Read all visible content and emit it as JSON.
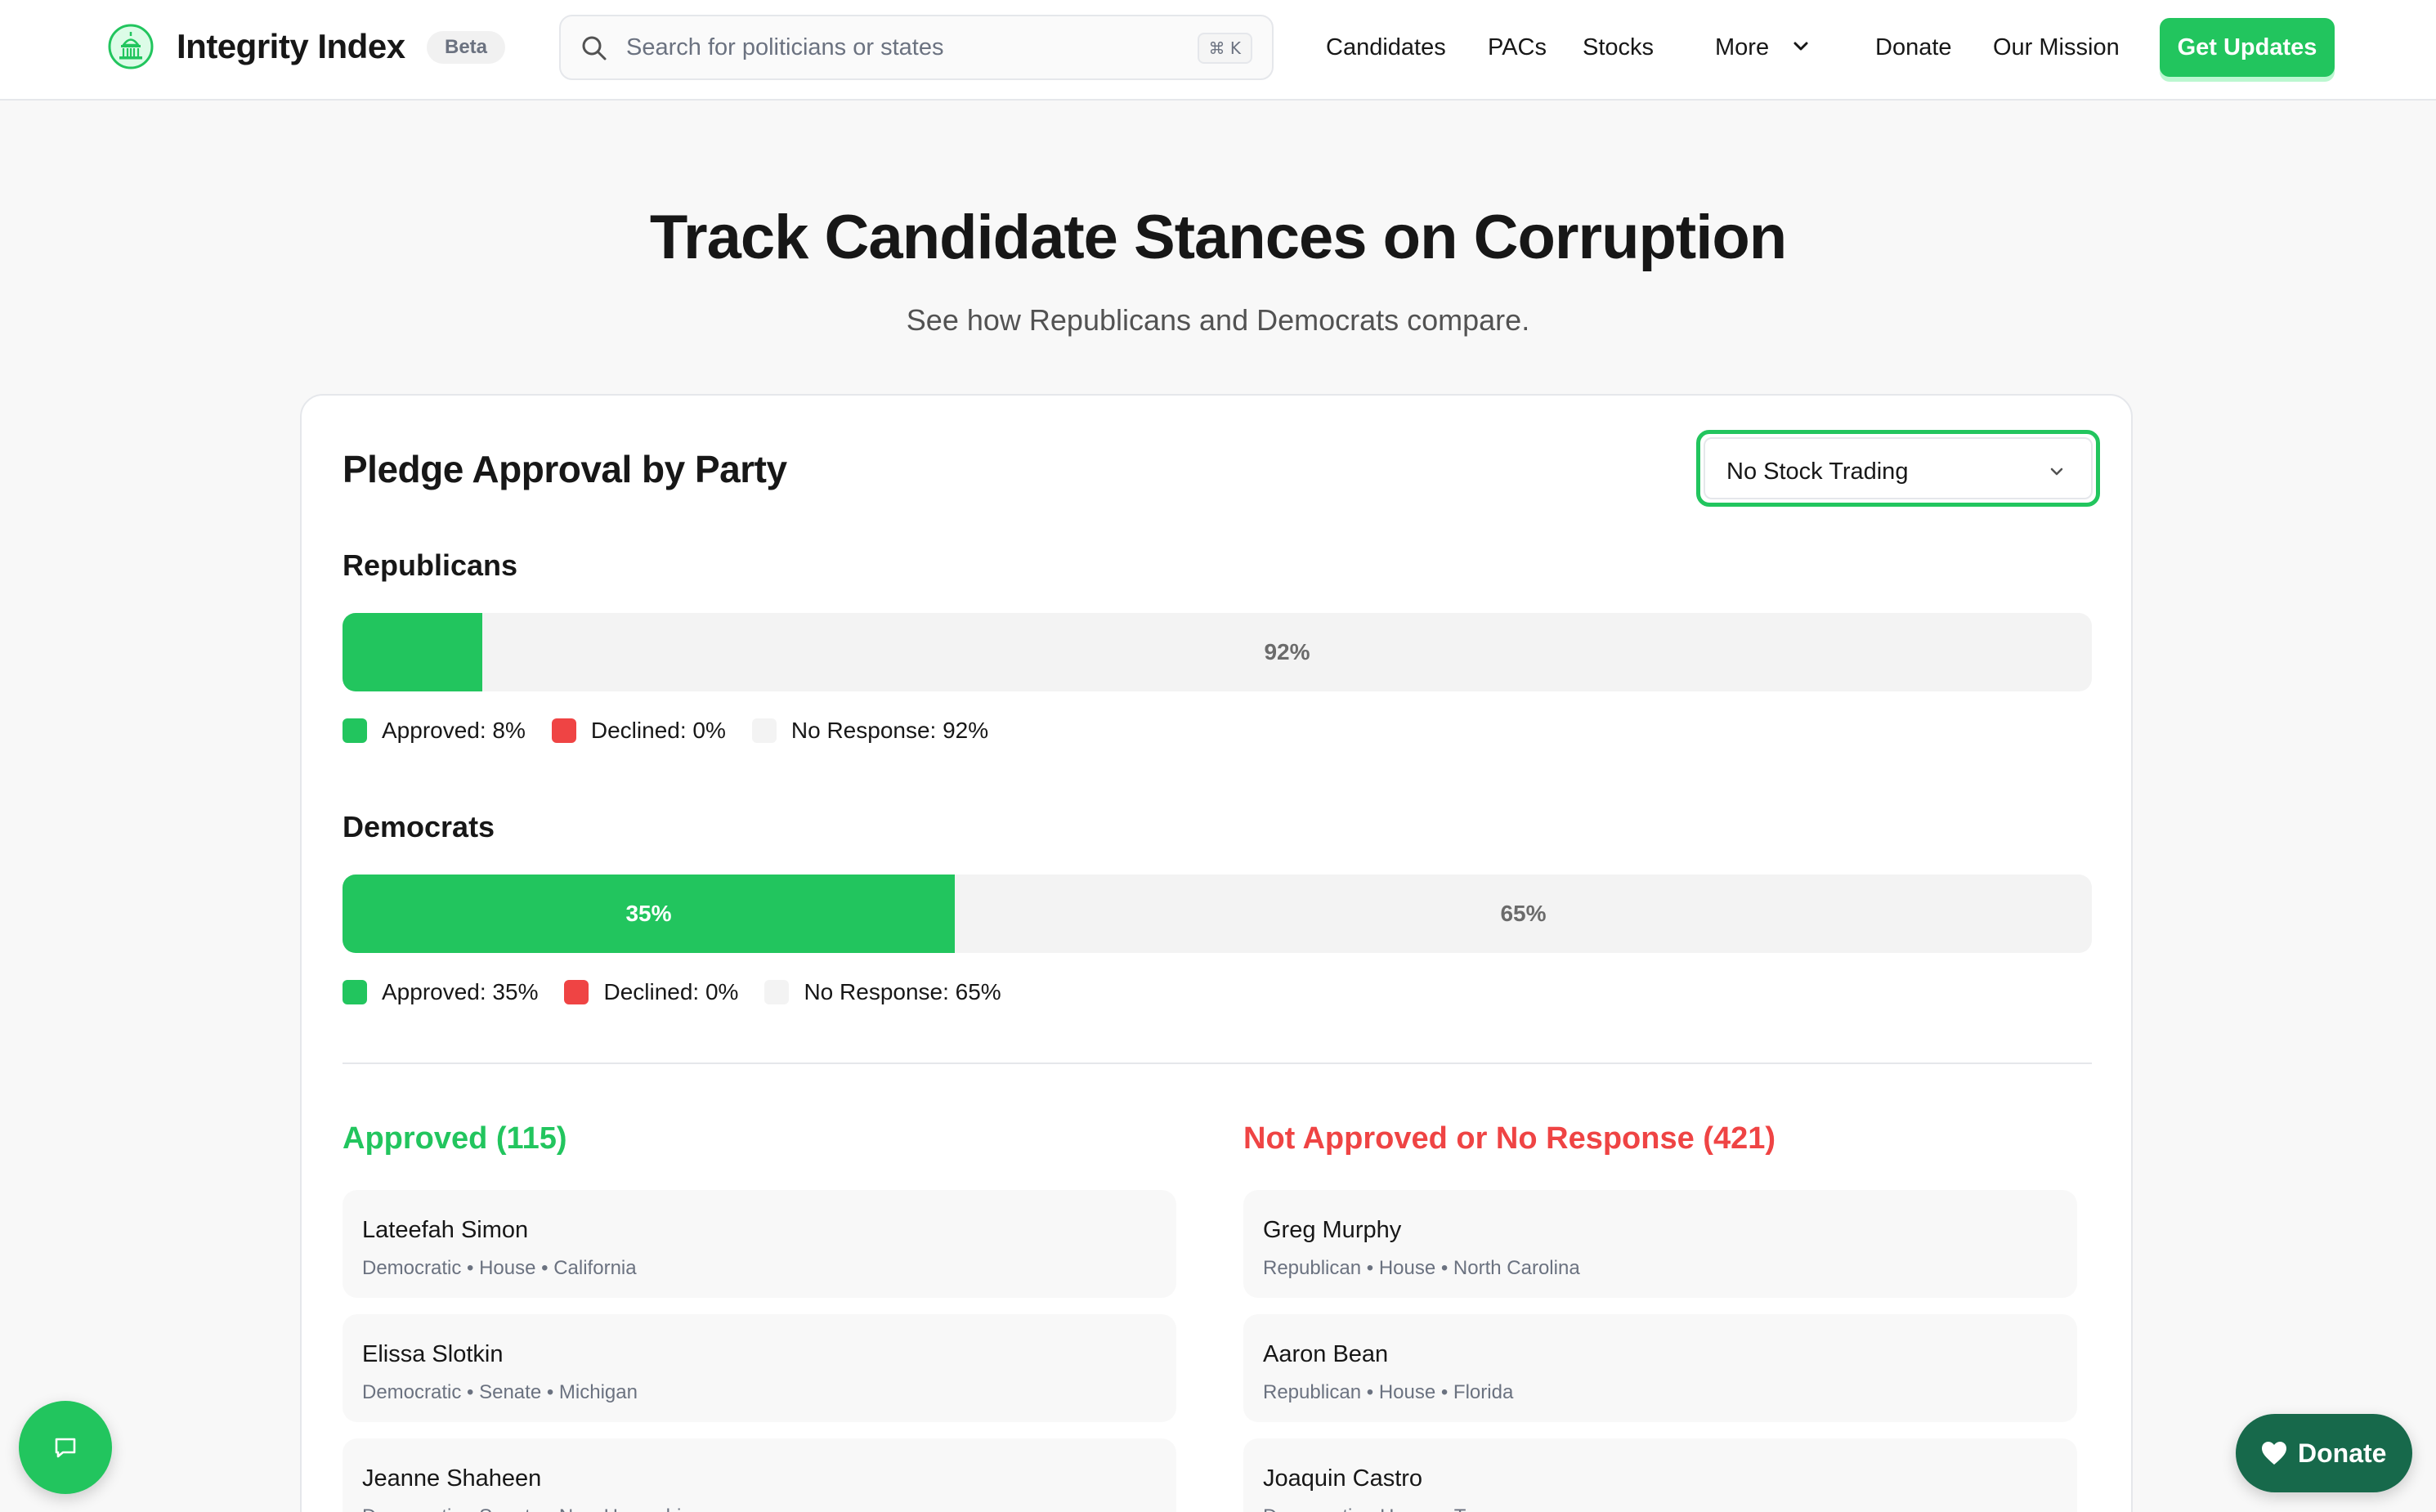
{
  "header": {
    "brand": "Integrity Index",
    "badge": "Beta",
    "search": {
      "placeholder": "Search for politicians or states",
      "shortcut": "⌘ K"
    },
    "nav": [
      "Candidates",
      "PACs",
      "Stocks",
      "More",
      "Donate",
      "Our Mission"
    ],
    "cta": "Get Updates"
  },
  "hero": {
    "title": "Track Candidate Stances on Corruption",
    "subtitle": "See how Republicans and Democrats compare."
  },
  "card": {
    "title": "Pledge Approval by Party",
    "select_value": "No Stock Trading",
    "parties": [
      {
        "name": "Republicans",
        "approved_pct": 8,
        "approved_bar_label": "",
        "rest_bar_label": "92%",
        "legend": [
          "Approved: 8%",
          "Declined: 0%",
          "No Response: 92%"
        ]
      },
      {
        "name": "Democrats",
        "approved_pct": 35,
        "approved_bar_label": "35%",
        "rest_bar_label": "65%",
        "legend": [
          "Approved: 35%",
          "Declined: 0%",
          "No Response: 65%"
        ]
      }
    ],
    "approved": {
      "title": "Approved (115)",
      "items": [
        {
          "name": "Lateefah Simon",
          "meta": "Democratic • House • California"
        },
        {
          "name": "Elissa Slotkin",
          "meta": "Democratic • Senate • Michigan"
        },
        {
          "name": "Jeanne Shaheen",
          "meta": "Democratic • Senate • New Hampshire"
        }
      ]
    },
    "not_approved": {
      "title": "Not Approved or No Response (421)",
      "items": [
        {
          "name": "Greg Murphy",
          "meta": "Republican • House • North Carolina"
        },
        {
          "name": "Aaron Bean",
          "meta": "Republican • House • Florida"
        },
        {
          "name": "Joaquin Castro",
          "meta": "Democratic • House • Texas"
        }
      ]
    }
  },
  "floating": {
    "donate": "Donate"
  },
  "colors": {
    "accent": "#22c55e",
    "declined": "#ef4444",
    "donate_bg": "#17694b"
  },
  "icons": [
    "capitol-logo-icon",
    "search-icon",
    "chevron-down-icon",
    "chat-icon",
    "heart-icon"
  ]
}
